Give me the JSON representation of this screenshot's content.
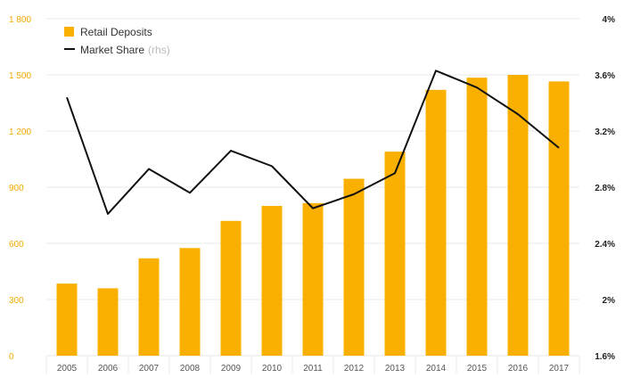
{
  "chart_data": {
    "type": "bar",
    "categories": [
      "2005",
      "2006",
      "2007",
      "2008",
      "2009",
      "2010",
      "2011",
      "2012",
      "2013",
      "2014",
      "2015",
      "2016",
      "2017"
    ],
    "series": [
      {
        "name": "Retail Deposits",
        "type": "bar",
        "axis": "left",
        "values": [
          385,
          360,
          520,
          575,
          720,
          800,
          815,
          945,
          1090,
          1420,
          1485,
          1500,
          1465
        ]
      },
      {
        "name": "Market Share",
        "legend_suffix": "(rhs)",
        "type": "line",
        "axis": "right",
        "values": [
          3.44,
          2.61,
          2.93,
          2.76,
          3.06,
          2.95,
          2.65,
          2.75,
          2.9,
          3.63,
          3.51,
          3.32,
          3.08
        ]
      }
    ],
    "y_left": {
      "ylim": [
        0,
        1800
      ],
      "ticks": [
        0,
        300,
        600,
        900,
        1200,
        1500,
        1800
      ],
      "tick_labels": [
        "0",
        "300",
        "600",
        "900",
        "1 200",
        "1 500",
        "1 800"
      ]
    },
    "y_right": {
      "ylim": [
        1.6,
        4.0
      ],
      "ticks": [
        1.6,
        2.0,
        2.4,
        2.8,
        3.2,
        3.6,
        4.0
      ],
      "tick_labels": [
        "1.6%",
        "2%",
        "2.4%",
        "2.8%",
        "3.2%",
        "3.6%",
        "4%"
      ]
    },
    "colors": {
      "bar": "#f9b000",
      "line": "#111111",
      "left_axis_text": "#f2a900",
      "grid": "#e8e8e8"
    },
    "grid": true,
    "legend_position": "top-left",
    "title": "",
    "xlabel": "",
    "ylabel": ""
  }
}
